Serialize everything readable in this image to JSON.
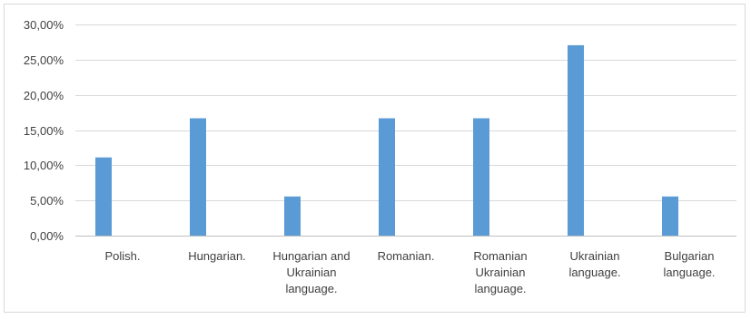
{
  "chart_data": {
    "type": "bar",
    "title": "",
    "xlabel": "",
    "ylabel": "",
    "categories": [
      [
        "Polish."
      ],
      [
        "Hungarian."
      ],
      [
        "Hungarian and",
        "Ukrainian",
        "language."
      ],
      [
        "Romanian."
      ],
      [
        "Romanian",
        "Ukrainian",
        "language."
      ],
      [
        "Ukrainian",
        "language."
      ],
      [
        "Bulgarian",
        "language."
      ]
    ],
    "values": [
      11.11,
      16.67,
      5.56,
      16.67,
      16.67,
      27.05,
      5.56
    ],
    "ylim": [
      0,
      30
    ],
    "yticks": [
      0,
      5,
      10,
      15,
      20,
      25,
      30
    ],
    "ytick_labels": [
      "0,00%",
      "5,00%",
      "10,00%",
      "15,00%",
      "20,00%",
      "25,00%",
      "30,00%"
    ],
    "grid": true,
    "legend": "none",
    "bar_color": "#5b9bd5"
  }
}
